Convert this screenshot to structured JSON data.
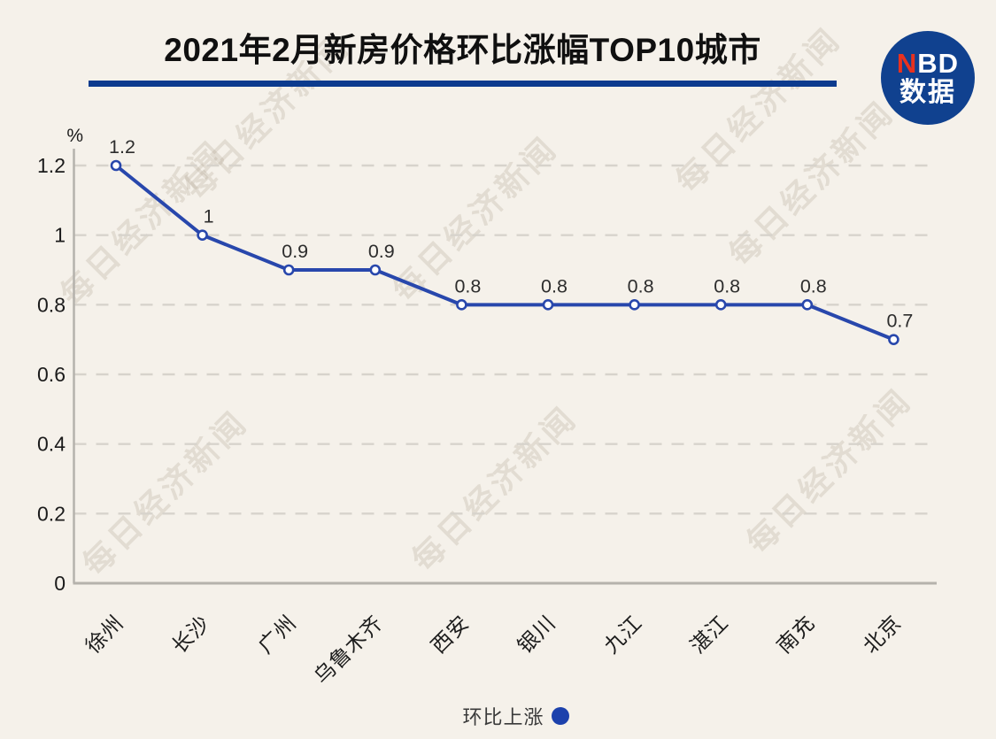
{
  "header": {
    "title": "2021年2月新房价格环比涨幅TOP10城市"
  },
  "logo": {
    "n": "N",
    "bd": "BD",
    "bottom": "数据",
    "circle_color": "#10418F",
    "n_color": "#E8321F"
  },
  "watermark": {
    "text": "每日经济新闻"
  },
  "chart_data": {
    "type": "line",
    "title": "2021年2月新房价格环比涨幅TOP10城市",
    "categories": [
      "徐州",
      "长沙",
      "广州",
      "乌鲁木齐",
      "西安",
      "银川",
      "九江",
      "湛江",
      "南充",
      "北京"
    ],
    "values": [
      1.2,
      1,
      0.9,
      0.9,
      0.8,
      0.8,
      0.8,
      0.8,
      0.8,
      0.7
    ],
    "series_name": "环比上涨",
    "unit_label": "%",
    "ylabel": "%",
    "ylim": [
      0,
      1.2
    ],
    "yticks": [
      0,
      0.2,
      0.4,
      0.6,
      0.8,
      1,
      1.2
    ],
    "grid": "horizontal-dashed",
    "legend_position": "bottom-center",
    "colors": {
      "line": "#2847AC",
      "marker_fill": "#FFFFFF",
      "grid": "#D7D3CC",
      "axis": "#B5B2AC",
      "tick_text": "#1B1B1B",
      "value_text": "#2D2D2D"
    }
  },
  "legend": {
    "label": "环比上涨",
    "dot_color": "#1C41AC"
  }
}
